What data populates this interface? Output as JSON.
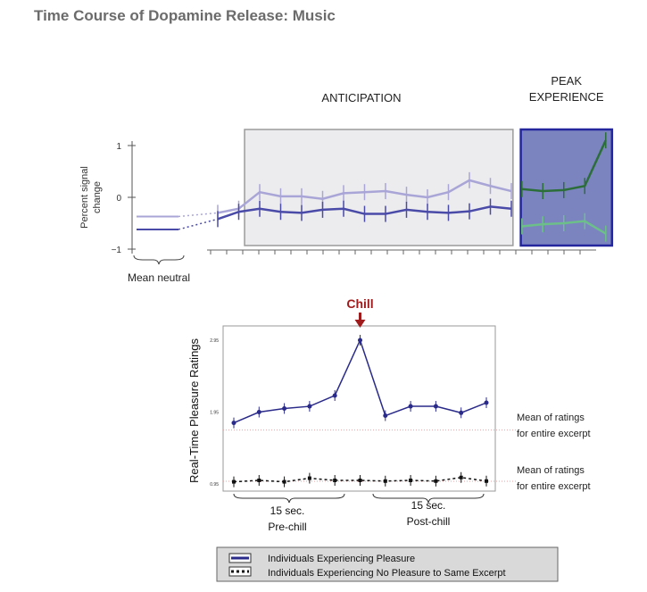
{
  "title": "Time Course of Dopamine Release: Music",
  "chart_data": [
    {
      "type": "line",
      "ylabel": "Percent signal change",
      "yticks": [
        "1",
        "0",
        "−1"
      ],
      "ylim": [
        -1,
        1.2
      ],
      "xtick_count": 25,
      "neutral_label": "Mean neutral",
      "neutral_means": {
        "light": -0.37,
        "dark": -0.62
      },
      "regions": [
        {
          "label": "ANTICIPATION",
          "start": 1.3,
          "end": 14.1
        },
        {
          "label_lines": [
            "PEAK",
            "EXPERIENCE"
          ],
          "start": 14.45,
          "end": 18.8
        }
      ],
      "series": [
        {
          "color": "#a9a5d6",
          "x": [
            0,
            1,
            2,
            3,
            4,
            5,
            6,
            7,
            8,
            9,
            10,
            11,
            12,
            13,
            14
          ],
          "y": [
            -0.3,
            -0.22,
            0.1,
            0.02,
            0.02,
            -0.03,
            0.08,
            0.1,
            0.12,
            0.05,
            0.0,
            0.1,
            0.33,
            0.22,
            0.12
          ]
        },
        {
          "color": "#4a4aa8",
          "x": [
            0,
            1,
            2,
            3,
            4,
            5,
            6,
            7,
            8,
            9,
            10,
            11,
            12,
            13,
            14
          ],
          "y": [
            -0.42,
            -0.28,
            -0.22,
            -0.28,
            -0.3,
            -0.24,
            -0.22,
            -0.32,
            -0.32,
            -0.24,
            -0.28,
            -0.3,
            -0.27,
            -0.18,
            -0.22
          ]
        },
        {
          "color": "#2c6e3a",
          "x": [
            14.5,
            15.5,
            16.5,
            17.5,
            18.5
          ],
          "y": [
            0.16,
            0.12,
            0.14,
            0.22,
            1.1
          ]
        },
        {
          "color": "#6dbf8a",
          "x": [
            14.5,
            15.5,
            16.5,
            17.5,
            18.5
          ],
          "y": [
            -0.56,
            -0.52,
            -0.5,
            -0.46,
            -0.7
          ]
        }
      ]
    },
    {
      "type": "line",
      "ylabel": "Real-Time Pleasure Ratings",
      "yticks": [
        "2.95",
        "1.95",
        "0.95"
      ],
      "ylim": [
        0.95,
        2.95
      ],
      "annotation": "Chill",
      "mean_label_lines": [
        "Mean of ratings",
        "for entire excerpt"
      ],
      "means": {
        "pleasure": 1.7,
        "no_pleasure": 0.95
      },
      "x_groups": [
        {
          "label_lines": [
            "15 sec.",
            "Pre-chill"
          ]
        },
        {
          "label_lines": [
            "15 sec.",
            "Post-chill"
          ]
        }
      ],
      "series": [
        {
          "name": "Individuals Experiencing Pleasure",
          "color": "#2a2a8a",
          "dashed": false,
          "x": [
            1,
            2,
            3,
            4,
            5,
            6,
            7,
            8,
            9,
            10,
            11
          ],
          "y": [
            1.8,
            1.95,
            2.0,
            2.03,
            2.18,
            2.95,
            1.9,
            2.03,
            2.03,
            1.94,
            2.08
          ]
        },
        {
          "name": "Individuals Experiencing No Pleasure to Same Excerpt",
          "color": "#111111",
          "dashed": true,
          "x": [
            1,
            2,
            3,
            4,
            5,
            6,
            7,
            8,
            9,
            10,
            11
          ],
          "y": [
            0.98,
            1.0,
            0.98,
            1.03,
            1.0,
            1.0,
            0.99,
            1.0,
            0.99,
            1.04,
            0.99
          ]
        }
      ]
    }
  ]
}
